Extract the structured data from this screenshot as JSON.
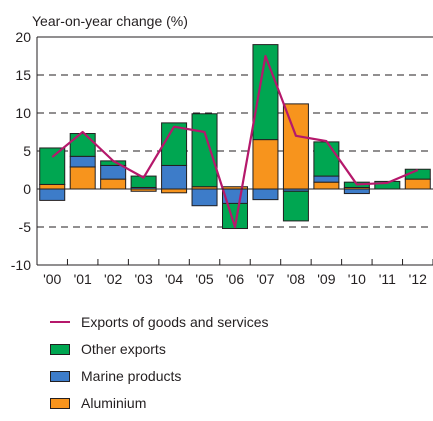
{
  "chart_data": {
    "type": "bar",
    "stacked": true,
    "title": "",
    "ylabel": "Year-on-year change (%)",
    "xlabel": "",
    "ylim": [
      -10,
      20
    ],
    "yticks": [
      "-10",
      "-5",
      "0",
      "5",
      "10",
      "15",
      "20"
    ],
    "categories": [
      "'00",
      "'01",
      "'02",
      "'03",
      "'04",
      "'05",
      "'06",
      "'07",
      "'08",
      "'09",
      "'10",
      "'11",
      "'12"
    ],
    "grid": "dashed horizontal",
    "series": [
      {
        "name": "Aluminium",
        "kind": "bar",
        "color": "#f7941d",
        "values": [
          0.6,
          2.9,
          1.3,
          -0.3,
          -0.5,
          0.3,
          0.3,
          6.5,
          11.2,
          0.9,
          0.2,
          0.0,
          1.3
        ]
      },
      {
        "name": "Marine products",
        "kind": "bar",
        "color": "#3d7cc9",
        "values": [
          -1.5,
          1.4,
          1.8,
          0.2,
          3.1,
          -2.2,
          -1.9,
          -1.4,
          -0.3,
          0.8,
          -0.6,
          0.0,
          0.0
        ]
      },
      {
        "name": "Other exports",
        "kind": "bar",
        "color": "#00a651",
        "values": [
          4.8,
          3.0,
          0.6,
          1.5,
          5.6,
          9.6,
          -3.3,
          12.5,
          -3.9,
          4.5,
          0.7,
          1.0,
          1.3
        ]
      },
      {
        "name": "Exports of goods and services",
        "kind": "line",
        "color": "#b5186b",
        "values": [
          4.2,
          7.5,
          3.7,
          1.5,
          8.2,
          7.5,
          -5.0,
          17.5,
          7.0,
          6.3,
          0.6,
          0.8,
          2.5
        ]
      }
    ]
  },
  "legend": {
    "items": [
      {
        "label": "Exports of goods and services",
        "type": "line",
        "color": "#b5186b"
      },
      {
        "label": "Other exports",
        "type": "box",
        "color": "#00a651"
      },
      {
        "label": "Marine products",
        "type": "box",
        "color": "#3d7cc9"
      },
      {
        "label": "Aluminium",
        "type": "box",
        "color": "#f7941d"
      }
    ]
  }
}
